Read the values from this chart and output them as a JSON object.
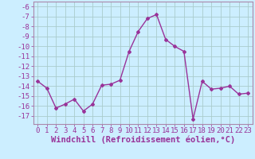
{
  "x": [
    0,
    1,
    2,
    3,
    4,
    5,
    6,
    7,
    8,
    9,
    10,
    11,
    12,
    13,
    14,
    15,
    16,
    17,
    18,
    19,
    20,
    21,
    22,
    23
  ],
  "y": [
    -13.5,
    -14.2,
    -16.2,
    -15.8,
    -15.3,
    -16.5,
    -15.8,
    -13.9,
    -13.8,
    -13.4,
    -10.5,
    -8.5,
    -7.2,
    -6.8,
    -9.3,
    -10.0,
    -10.5,
    -17.3,
    -13.5,
    -14.3,
    -14.2,
    -14.0,
    -14.8,
    -14.7
  ],
  "line_color": "#993399",
  "marker": "D",
  "marker_size": 2.0,
  "bg_color": "#cceeff",
  "grid_color": "#aacccc",
  "xlabel": "Windchill (Refroidissement éolien,°C)",
  "ylim": [
    -17.8,
    -5.5
  ],
  "xlim": [
    -0.5,
    23.5
  ],
  "yticks": [
    -6,
    -7,
    -8,
    -9,
    -10,
    -11,
    -12,
    -13,
    -14,
    -15,
    -16,
    -17
  ],
  "xticks": [
    0,
    1,
    2,
    3,
    4,
    5,
    6,
    7,
    8,
    9,
    10,
    11,
    12,
    13,
    14,
    15,
    16,
    17,
    18,
    19,
    20,
    21,
    22,
    23
  ],
  "xlabel_fontsize": 7.5,
  "tick_fontsize": 6.5,
  "line_width": 1.0,
  "spine_color": "#aa88aa",
  "label_color": "#993399"
}
